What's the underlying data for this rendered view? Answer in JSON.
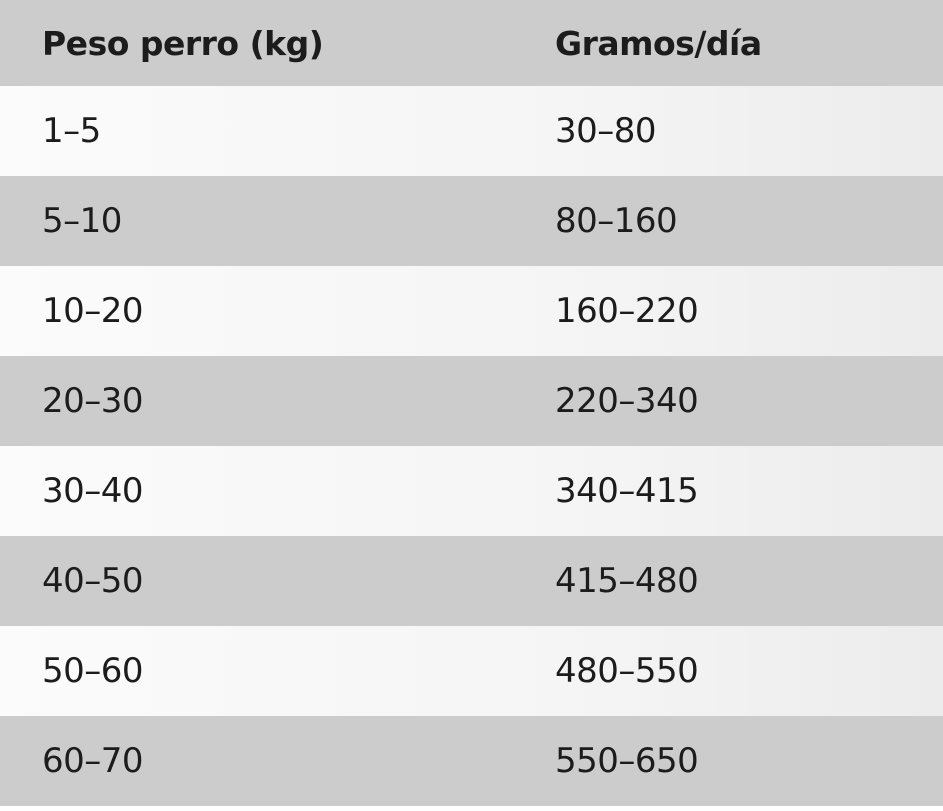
{
  "table": {
    "header": [
      "Peso perro (kg)",
      "Gramos/día"
    ],
    "rows": [
      [
        "1–5",
        "30–80"
      ],
      [
        "5–10",
        "80–160"
      ],
      [
        "10–20",
        "160–220"
      ],
      [
        "20–30",
        "220–340"
      ],
      [
        "30–40",
        "340–415"
      ],
      [
        "40–50",
        "415–480"
      ],
      [
        "50–60",
        "480–550"
      ],
      [
        "60–70",
        "550–650"
      ]
    ]
  }
}
